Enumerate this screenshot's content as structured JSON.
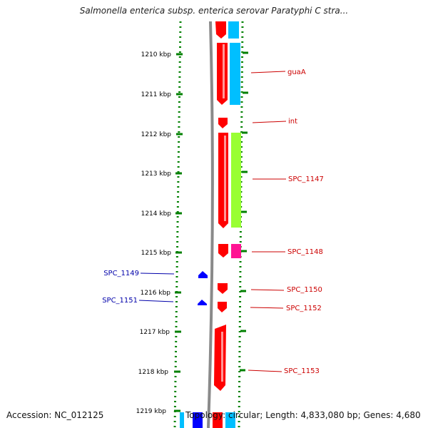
{
  "title": "Salmonella enterica subsp. enterica serovar Paratyphi C stra...",
  "footer": {
    "accession": "Accession: NC_012125",
    "topology": "Topology: circular; Length: 4,833,080 bp; Genes: 4,680"
  },
  "scale_labels": [
    "1210 kbp",
    "1211 kbp",
    "1212 kbp",
    "1213 kbp",
    "1214 kbp",
    "1215 kbp",
    "1216 kbp",
    "1217 kbp",
    "1218 kbp",
    "1219 kbp"
  ],
  "genes_right": [
    "guaA",
    "int",
    "SPC_1147",
    "SPC_1148",
    "SPC_1150",
    "SPC_1152",
    "SPC_1153"
  ],
  "genes_left": [
    "SPC_1149",
    "SPC_1151"
  ],
  "colors": {
    "forward": "#ff0000",
    "reverse": "#0000ff",
    "track_cyan": "#00bfff",
    "track_green": "#99ff33",
    "track_magenta": "#ff1493",
    "backbone": "#888888",
    "ticks": "#008000"
  }
}
